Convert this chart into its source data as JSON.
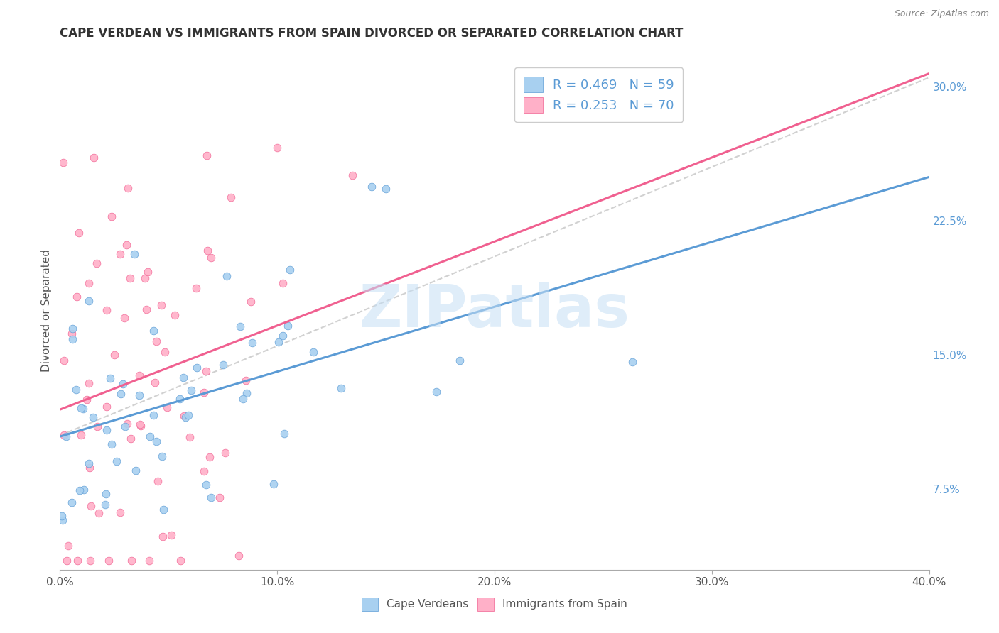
{
  "title": "CAPE VERDEAN VS IMMIGRANTS FROM SPAIN DIVORCED OR SEPARATED CORRELATION CHART",
  "source": "Source: ZipAtlas.com",
  "xlabel_ticks": [
    "0.0%",
    "10.0%",
    "20.0%",
    "30.0%",
    "40.0%"
  ],
  "xlabel_tick_vals": [
    0.0,
    0.1,
    0.2,
    0.3,
    0.4
  ],
  "ylabel": "Divorced or Separated",
  "ylabel_ticks": [
    "7.5%",
    "15.0%",
    "22.5%",
    "30.0%"
  ],
  "ylabel_tick_vals": [
    0.075,
    0.15,
    0.225,
    0.3
  ],
  "xmin": 0.0,
  "xmax": 0.4,
  "ymin": 0.03,
  "ymax": 0.32,
  "watermark": "ZIPatlas",
  "legend_R1": "R = 0.469",
  "legend_N1": "N = 59",
  "legend_R2": "R = 0.253",
  "legend_N2": "N = 70",
  "color_blue": "#a8d0f0",
  "color_pink": "#ffb0c8",
  "color_blue_line": "#5b9bd5",
  "color_pink_line": "#f06090",
  "trend_blue": "#5b9bd5",
  "trend_pink": "#f06090",
  "trend_dashed_color": "#cccccc",
  "legend_text_color": "#5b9bd5",
  "right_axis_color": "#5b9bd5"
}
